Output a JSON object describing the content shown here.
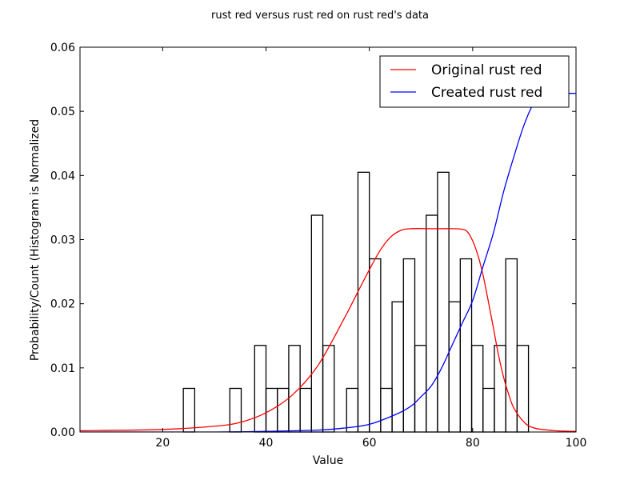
{
  "chart_data": {
    "type": "histogram+line",
    "title": "rust red versus rust red on rust red's data",
    "xlabel": "Value",
    "ylabel": "Probability/Count (Histogram is Normalized",
    "xlim": [
      4,
      100
    ],
    "ylim": [
      0,
      0.06
    ],
    "x_ticks": [
      20,
      40,
      60,
      80,
      100
    ],
    "y_ticks": [
      0.0,
      0.01,
      0.02,
      0.03,
      0.04,
      0.05,
      0.06
    ],
    "y_tick_labels": [
      "0.00",
      "0.01",
      "0.02",
      "0.03",
      "0.04",
      "0.05",
      "0.06"
    ],
    "grid": false,
    "legend_position": "top-right",
    "histogram": {
      "edgecolor": "#000000",
      "facecolor": "none",
      "bins": [
        {
          "x0": 24.0,
          "x1": 26.2,
          "value": 0.0068
        },
        {
          "x0": 33.0,
          "x1": 35.2,
          "value": 0.0068
        },
        {
          "x0": 37.8,
          "x1": 40.0,
          "value": 0.0135
        },
        {
          "x0": 40.0,
          "x1": 42.2,
          "value": 0.0068
        },
        {
          "x0": 42.2,
          "x1": 44.4,
          "value": 0.0068
        },
        {
          "x0": 44.4,
          "x1": 46.6,
          "value": 0.0135
        },
        {
          "x0": 46.6,
          "x1": 48.8,
          "value": 0.0068
        },
        {
          "x0": 48.8,
          "x1": 51.0,
          "value": 0.0338
        },
        {
          "x0": 51.0,
          "x1": 53.2,
          "value": 0.0135
        },
        {
          "x0": 55.6,
          "x1": 57.8,
          "value": 0.0068
        },
        {
          "x0": 57.8,
          "x1": 60.0,
          "value": 0.0405
        },
        {
          "x0": 60.0,
          "x1": 62.2,
          "value": 0.027
        },
        {
          "x0": 62.2,
          "x1": 64.4,
          "value": 0.0068
        },
        {
          "x0": 64.4,
          "x1": 66.6,
          "value": 0.0203
        },
        {
          "x0": 66.6,
          "x1": 68.8,
          "value": 0.027
        },
        {
          "x0": 68.8,
          "x1": 71.0,
          "value": 0.0135
        },
        {
          "x0": 71.0,
          "x1": 73.2,
          "value": 0.0338
        },
        {
          "x0": 73.2,
          "x1": 75.4,
          "value": 0.0405
        },
        {
          "x0": 75.4,
          "x1": 77.6,
          "value": 0.0203
        },
        {
          "x0": 77.6,
          "x1": 79.8,
          "value": 0.027
        },
        {
          "x0": 79.8,
          "x1": 82.0,
          "value": 0.0135
        },
        {
          "x0": 82.0,
          "x1": 84.2,
          "value": 0.0068
        },
        {
          "x0": 84.2,
          "x1": 86.4,
          "value": 0.0135
        },
        {
          "x0": 86.4,
          "x1": 88.6,
          "value": 0.027
        },
        {
          "x0": 88.6,
          "x1": 90.8,
          "value": 0.0135
        }
      ]
    },
    "series": [
      {
        "name": "Original rust red",
        "color": "#ff0000",
        "points": [
          [
            4,
            0.0002
          ],
          [
            20,
            0.0004
          ],
          [
            30,
            0.0009
          ],
          [
            35,
            0.0015
          ],
          [
            40,
            0.003
          ],
          [
            45,
            0.0057
          ],
          [
            50,
            0.0103
          ],
          [
            55,
            0.0175
          ],
          [
            58,
            0.0222
          ],
          [
            60,
            0.0253
          ],
          [
            62,
            0.0282
          ],
          [
            64,
            0.0303
          ],
          [
            66,
            0.0314
          ],
          [
            68,
            0.0317
          ],
          [
            72,
            0.0317
          ],
          [
            76,
            0.0317
          ],
          [
            78,
            0.0316
          ],
          [
            79,
            0.0312
          ],
          [
            80,
            0.0298
          ],
          [
            81,
            0.0276
          ],
          [
            82,
            0.0245
          ],
          [
            83,
            0.0205
          ],
          [
            84,
            0.0163
          ],
          [
            85,
            0.012
          ],
          [
            86,
            0.0085
          ],
          [
            87,
            0.0058
          ],
          [
            88,
            0.0037
          ],
          [
            90,
            0.0015
          ],
          [
            92,
            0.0006
          ],
          [
            96,
            0.0002
          ],
          [
            100,
            0.0001
          ]
        ]
      },
      {
        "name": "Created rust red",
        "color": "#0000ff",
        "points": [
          [
            4,
            0.0
          ],
          [
            30,
            0.0
          ],
          [
            40,
            0.0001
          ],
          [
            50,
            0.0003
          ],
          [
            55,
            0.0006
          ],
          [
            60,
            0.0012
          ],
          [
            65,
            0.0027
          ],
          [
            68,
            0.004
          ],
          [
            70,
            0.0055
          ],
          [
            72,
            0.0072
          ],
          [
            74,
            0.01
          ],
          [
            76,
            0.0135
          ],
          [
            78,
            0.017
          ],
          [
            80,
            0.0205
          ],
          [
            82,
            0.0258
          ],
          [
            84,
            0.031
          ],
          [
            86,
            0.0375
          ],
          [
            88,
            0.043
          ],
          [
            90,
            0.048
          ],
          [
            92,
            0.0515
          ],
          [
            94,
            0.0527
          ],
          [
            96,
            0.0528
          ],
          [
            100,
            0.0528
          ]
        ]
      }
    ]
  }
}
